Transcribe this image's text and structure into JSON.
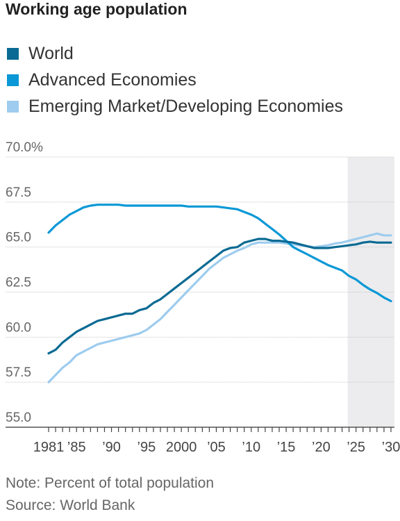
{
  "title": "Working age population",
  "legend": [
    {
      "label": "World",
      "color": "#0a6a93"
    },
    {
      "label": "Advanced Economies",
      "color": "#0a98d6"
    },
    {
      "label": "Emerging Market/Developing Economies",
      "color": "#9dccee"
    }
  ],
  "notes": {
    "note": "Note: Percent of total population",
    "source": "Source: World Bank"
  },
  "chart_data": {
    "type": "line",
    "ylim": [
      55,
      70
    ],
    "xlim": [
      1981,
      2030
    ],
    "y_ticks": [
      55,
      57.5,
      60,
      62.5,
      65,
      67.5,
      70
    ],
    "y_tick_labels": [
      "55.0",
      "57.5",
      "60.0",
      "62.5",
      "65.0",
      "67.5",
      "70.0%"
    ],
    "x_tick_labels": [
      {
        "year": 1981,
        "label": "1981"
      },
      {
        "year": 1985,
        "label": "’85"
      },
      {
        "year": 1990,
        "label": "’90"
      },
      {
        "year": 1995,
        "label": "’95"
      },
      {
        "year": 2000,
        "label": "2000"
      },
      {
        "year": 2005,
        "label": "’05"
      },
      {
        "year": 2010,
        "label": "’10"
      },
      {
        "year": 2015,
        "label": "’15"
      },
      {
        "year": 2020,
        "label": "’20"
      },
      {
        "year": 2025,
        "label": "’25"
      },
      {
        "year": 2030,
        "label": "’30"
      }
    ],
    "shaded_range": [
      2024,
      2030
    ],
    "grid": true,
    "series": [
      {
        "name": "World",
        "color": "#0a6a93",
        "x": [
          1981,
          1982,
          1983,
          1984,
          1985,
          1986,
          1987,
          1988,
          1989,
          1990,
          1991,
          1992,
          1993,
          1994,
          1995,
          1996,
          1997,
          1998,
          1999,
          2000,
          2001,
          2002,
          2003,
          2004,
          2005,
          2006,
          2007,
          2008,
          2009,
          2010,
          2011,
          2012,
          2013,
          2014,
          2015,
          2016,
          2017,
          2018,
          2019,
          2020,
          2021,
          2022,
          2023,
          2024,
          2025,
          2026,
          2027,
          2028,
          2029,
          2030
        ],
        "values": [
          59.1,
          59.3,
          59.7,
          60.0,
          60.3,
          60.5,
          60.7,
          60.9,
          61.0,
          61.1,
          61.2,
          61.3,
          61.3,
          61.5,
          61.6,
          61.9,
          62.1,
          62.4,
          62.7,
          63.0,
          63.3,
          63.6,
          63.9,
          64.2,
          64.5,
          64.8,
          64.95,
          65.0,
          65.25,
          65.35,
          65.45,
          65.45,
          65.35,
          65.35,
          65.3,
          65.25,
          65.15,
          65.05,
          64.95,
          64.95,
          64.95,
          65.0,
          65.05,
          65.1,
          65.15,
          65.25,
          65.3,
          65.25,
          65.25,
          65.25
        ]
      },
      {
        "name": "Advanced Economies",
        "color": "#0a98d6",
        "x": [
          1981,
          1982,
          1983,
          1984,
          1985,
          1986,
          1987,
          1988,
          1989,
          1990,
          1991,
          1992,
          1993,
          1994,
          1995,
          1996,
          1997,
          1998,
          1999,
          2000,
          2001,
          2002,
          2003,
          2004,
          2005,
          2006,
          2007,
          2008,
          2009,
          2010,
          2011,
          2012,
          2013,
          2014,
          2015,
          2016,
          2017,
          2018,
          2019,
          2020,
          2021,
          2022,
          2023,
          2024,
          2025,
          2026,
          2027,
          2028,
          2029,
          2030
        ],
        "values": [
          65.8,
          66.2,
          66.5,
          66.8,
          67.0,
          67.2,
          67.3,
          67.35,
          67.35,
          67.35,
          67.35,
          67.3,
          67.3,
          67.3,
          67.3,
          67.3,
          67.3,
          67.3,
          67.3,
          67.3,
          67.25,
          67.25,
          67.25,
          67.25,
          67.25,
          67.2,
          67.15,
          67.1,
          66.95,
          66.8,
          66.6,
          66.3,
          66.0,
          65.7,
          65.35,
          65.0,
          64.8,
          64.6,
          64.4,
          64.2,
          64.0,
          63.85,
          63.7,
          63.4,
          63.2,
          62.9,
          62.65,
          62.45,
          62.2,
          62.0
        ]
      },
      {
        "name": "Emerging Market/Developing Economies",
        "color": "#9dccee",
        "x": [
          1981,
          1982,
          1983,
          1984,
          1985,
          1986,
          1987,
          1988,
          1989,
          1990,
          1991,
          1992,
          1993,
          1994,
          1995,
          1996,
          1997,
          1998,
          1999,
          2000,
          2001,
          2002,
          2003,
          2004,
          2005,
          2006,
          2007,
          2008,
          2009,
          2010,
          2011,
          2012,
          2013,
          2014,
          2015,
          2016,
          2017,
          2018,
          2019,
          2020,
          2021,
          2022,
          2023,
          2024,
          2025,
          2026,
          2027,
          2028,
          2029,
          2030
        ],
        "values": [
          57.5,
          57.9,
          58.3,
          58.6,
          59.0,
          59.2,
          59.4,
          59.6,
          59.7,
          59.8,
          59.9,
          60.0,
          60.1,
          60.2,
          60.4,
          60.7,
          61.0,
          61.4,
          61.8,
          62.2,
          62.6,
          63.0,
          63.4,
          63.8,
          64.1,
          64.4,
          64.6,
          64.8,
          64.95,
          65.15,
          65.25,
          65.25,
          65.25,
          65.25,
          65.2,
          65.15,
          65.1,
          65.05,
          65.0,
          65.05,
          65.1,
          65.2,
          65.25,
          65.35,
          65.45,
          65.55,
          65.65,
          65.75,
          65.65,
          65.65
        ]
      }
    ]
  }
}
